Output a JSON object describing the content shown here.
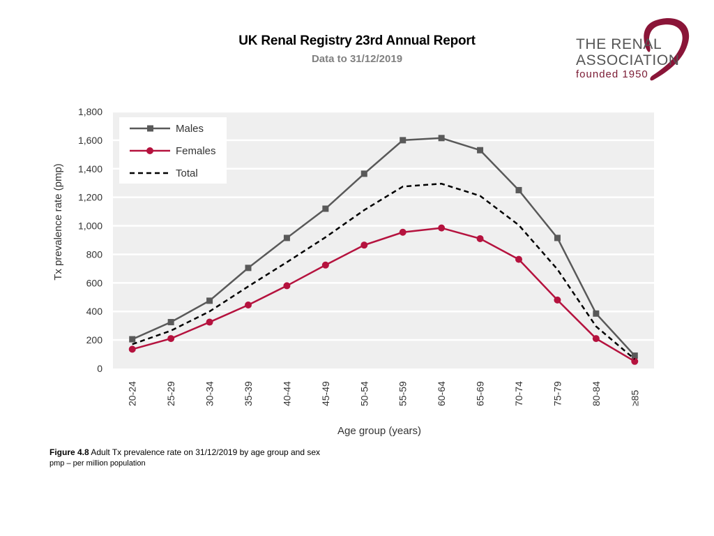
{
  "header": {
    "title": "UK Renal Registry 23rd Annual Report",
    "subtitle": "Data to 31/12/2019"
  },
  "logo": {
    "line1": "THE RENAL",
    "line2": "ASSOCIATION",
    "line3": "founded 1950"
  },
  "caption": {
    "label": "Figure 4.8",
    "text": "Adult Tx prevalence rate on 31/12/2019 by age group and sex",
    "note": "pmp – per million population"
  },
  "chart_data": {
    "type": "line",
    "title": "",
    "xlabel": "Age group (years)",
    "ylabel": "Tx prevalence rate (pmp)",
    "ylim": [
      0,
      1800
    ],
    "yticks": [
      0,
      200,
      400,
      600,
      800,
      1000,
      1200,
      1400,
      1600,
      1800
    ],
    "ytick_labels": [
      "0",
      "200",
      "400",
      "600",
      "800",
      "1,000",
      "1,200",
      "1,400",
      "1,600",
      "1,800"
    ],
    "categories": [
      "20-24",
      "25-29",
      "30-34",
      "35-39",
      "40-44",
      "45-49",
      "50-54",
      "55-59",
      "60-64",
      "65-69",
      "70-74",
      "75-79",
      "80-84",
      "≥85"
    ],
    "grid": true,
    "legend_position": "top-left",
    "series": [
      {
        "name": "Males",
        "color": "#595959",
        "marker": "square",
        "dash": false,
        "values": [
          205,
          325,
          475,
          705,
          915,
          1120,
          1365,
          1600,
          1615,
          1530,
          1250,
          915,
          385,
          90
        ]
      },
      {
        "name": "Females",
        "color": "#b5123e",
        "marker": "circle",
        "dash": false,
        "values": [
          135,
          210,
          325,
          445,
          580,
          725,
          865,
          955,
          985,
          910,
          765,
          480,
          210,
          50
        ]
      },
      {
        "name": "Total",
        "color": "#000000",
        "marker": "none",
        "dash": true,
        "values": [
          170,
          265,
          400,
          575,
          745,
          920,
          1110,
          1275,
          1295,
          1210,
          1005,
          695,
          295,
          65
        ]
      }
    ]
  }
}
